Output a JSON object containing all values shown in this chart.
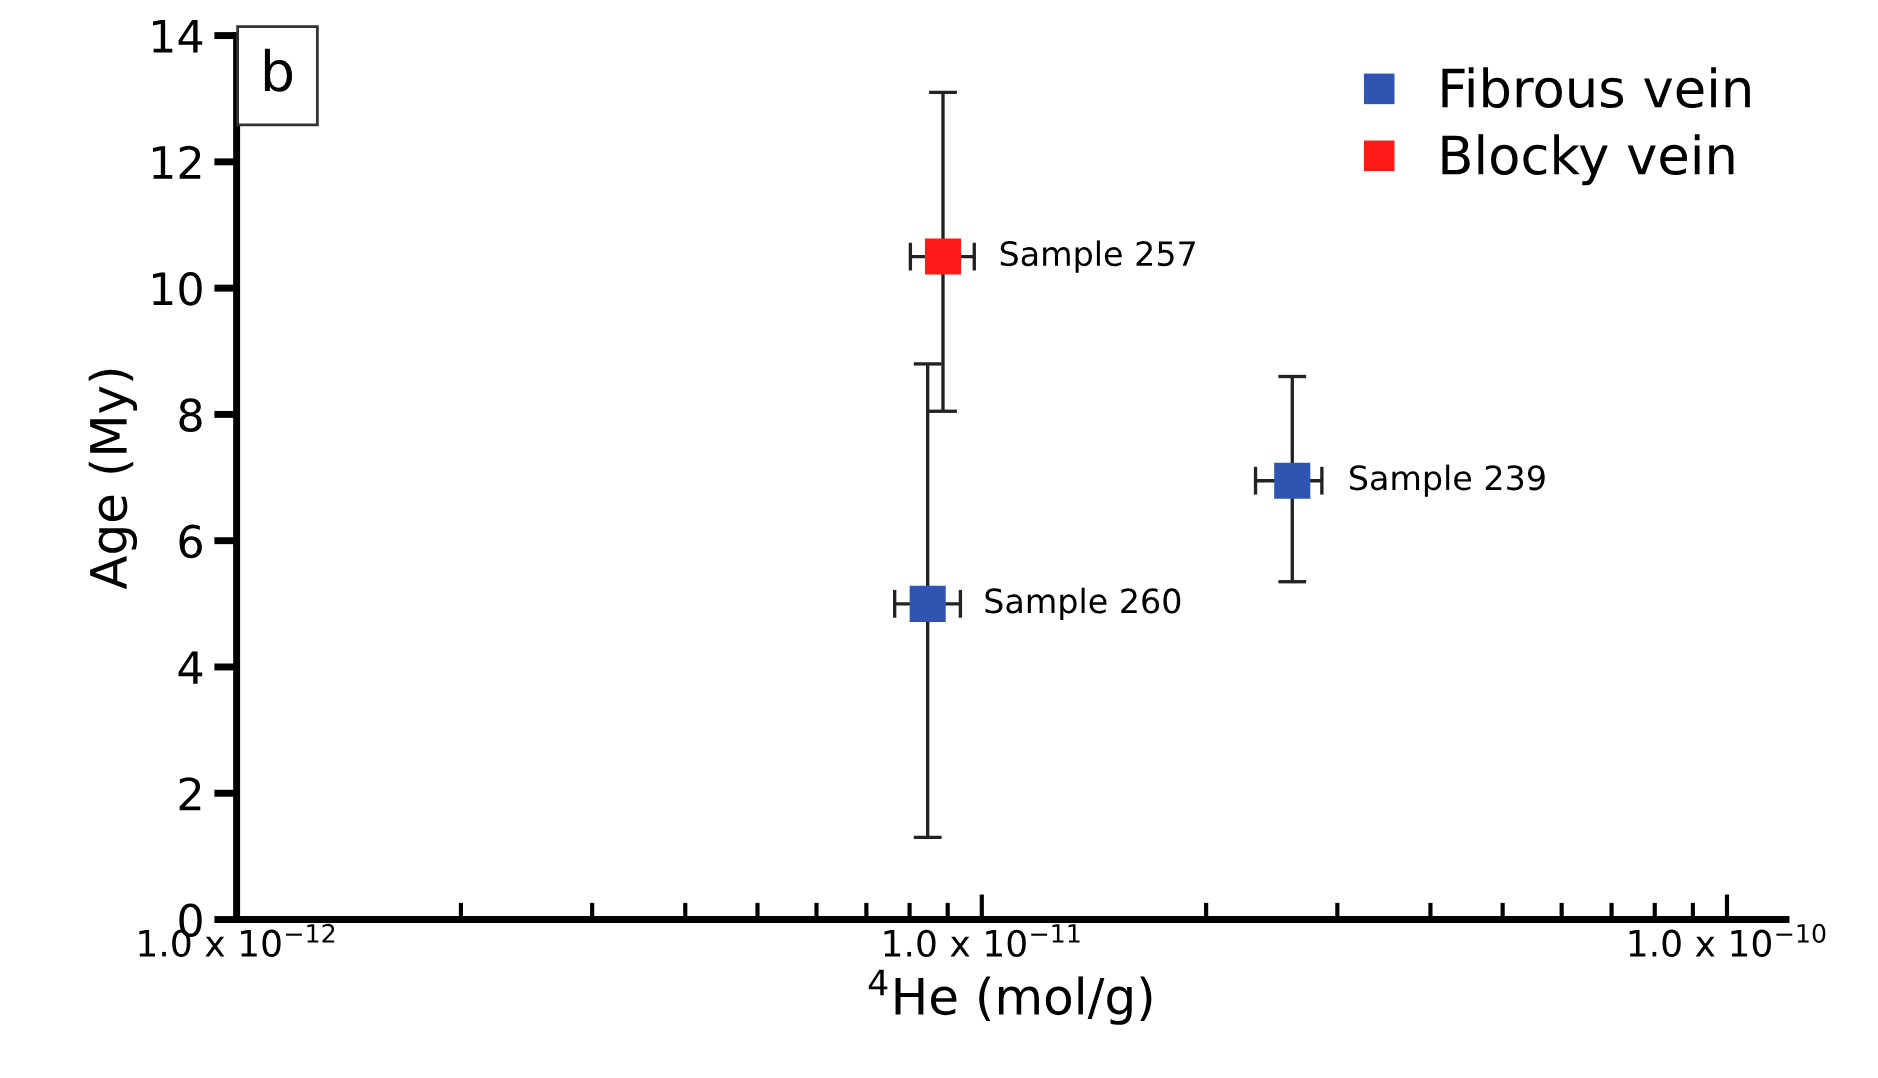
{
  "chart_data": {
    "type": "scatter",
    "xlabel": "$^{4}$He (mol/g)",
    "ylabel": "Age (My)",
    "log": "x",
    "xlim": [
      1e-12,
      1.2e-10
    ],
    "xticks": [
      {
        "value": 1e-12,
        "label": "1.0 x 10$^{−12}$"
      },
      {
        "value": 1e-11,
        "label": "1.0 x 10$^{−11}$"
      },
      {
        "value": 1e-10,
        "label": "1.0 x 10$^{−10}$"
      }
    ],
    "ylim": [
      0,
      14
    ],
    "yticks": [
      0,
      2,
      4,
      6,
      8,
      10,
      12,
      14
    ],
    "grid": false,
    "legend": "top right",
    "marker": "square",
    "series": [
      {
        "name": "Fibrous vein",
        "color": "#2f55b0",
        "x": [
          8.46e-12,
          2.61e-11
        ],
        "values": [
          5.0,
          6.95
        ],
        "errors": [
          [
            1.3,
            8.8
          ],
          [
            5.35,
            8.6
          ]
        ],
        "xerrors": [
          [
            7.64e-12,
            9.36e-12
          ],
          [
            2.33e-11,
            2.86e-11
          ]
        ]
      },
      {
        "name": "Blocky vein",
        "color": "#ff1a1a",
        "x": [
          8.87e-12
        ],
        "values": [
          10.5
        ],
        "errors": [
          [
            8.05,
            13.1
          ]
        ],
        "xerrors": [
          [
            8.02e-12,
            9.77e-12
          ]
        ]
      }
    ],
    "annotations": [
      "b",
      {
        "text": "Sample 260",
        "x": 8.46e-12,
        "y": 5.0
      },
      {
        "text": "Sample 239",
        "x": 2.61e-11,
        "y": 6.95
      },
      {
        "text": "Sample 257",
        "x": 8.87e-12,
        "y": 10.5
      }
    ]
  }
}
